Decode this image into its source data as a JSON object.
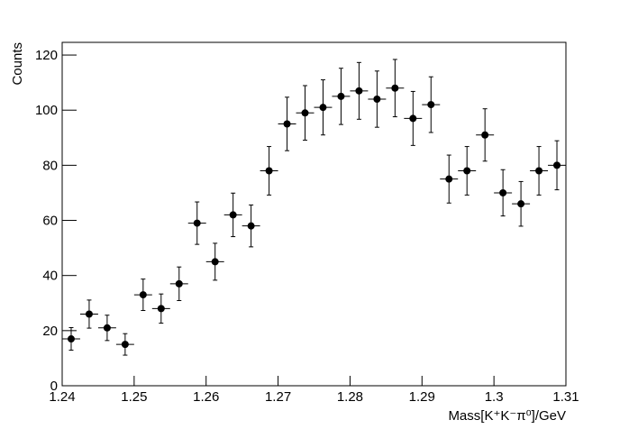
{
  "chart_data": {
    "type": "histogram",
    "xlabel": "Mass[K⁺K⁻π⁰]/GeV",
    "ylabel": "Counts",
    "bins": [
      1.24,
      1.2425,
      1.245,
      1.2475,
      1.25,
      1.2525,
      1.255,
      1.2575,
      1.26,
      1.2625,
      1.265,
      1.2675,
      1.27,
      1.2725,
      1.275,
      1.2775,
      1.28,
      1.2825,
      1.285,
      1.2875,
      1.29,
      1.2925,
      1.295,
      1.2975,
      1.3,
      1.3025,
      1.305,
      1.3075,
      1.31
    ],
    "values": [
      17,
      26,
      21,
      15,
      33,
      28,
      37,
      59,
      45,
      62,
      58,
      78,
      95,
      99,
      101,
      105,
      107,
      104,
      108,
      97,
      102,
      75,
      78,
      91,
      70,
      66,
      78,
      80
    ],
    "errors": [
      4.1,
      5.1,
      4.6,
      3.9,
      5.7,
      5.3,
      6.1,
      7.7,
      6.7,
      7.9,
      7.6,
      8.8,
      9.7,
      9.9,
      10.0,
      10.2,
      10.3,
      10.2,
      10.4,
      9.8,
      10.1,
      8.7,
      8.8,
      9.5,
      8.4,
      8.1,
      8.8,
      8.9
    ],
    "color": "#000000",
    "xlim": [
      1.24,
      1.31
    ],
    "xticks": [
      1.24,
      1.25,
      1.26,
      1.27,
      1.28,
      1.29,
      1.3,
      1.31
    ],
    "ylim": [
      0,
      124.6
    ],
    "yticks": [
      0,
      20,
      40,
      60,
      80,
      100,
      120
    ]
  }
}
